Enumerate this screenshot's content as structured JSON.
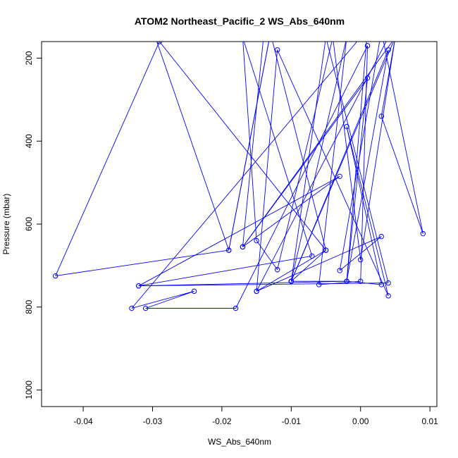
{
  "chart_data": {
    "type": "line",
    "title": "ATOM2 Northeast_Pacific_2 WS_Abs_640nm",
    "xlabel": "WS_Abs_640nm",
    "ylabel": "Pressure (mbar)",
    "xlim": [
      -0.046,
      0.011
    ],
    "ylim": [
      1040,
      160
    ],
    "y_inverted": true,
    "xticks": [
      -0.04,
      -0.03,
      -0.02,
      -0.01,
      0.0,
      0.01
    ],
    "xtick_labels": [
      "-0.04",
      "-0.03",
      "-0.02",
      "-0.01",
      "0.00",
      "0.01"
    ],
    "yticks": [
      200,
      400,
      600,
      800,
      1000
    ],
    "ytick_labels": [
      "200",
      "400",
      "600",
      "800",
      "1000"
    ],
    "grid": false,
    "color": "#0000ff",
    "series": [
      {
        "marker": "open-circle",
        "points": [
          [
            -0.03,
            130
          ],
          [
            -0.019,
            663
          ],
          [
            -0.013,
            140
          ],
          [
            -0.005,
            663
          ],
          [
            -0.029,
            160
          ],
          [
            -0.044,
            725
          ],
          [
            -0.019,
            663
          ],
          [
            -0.013,
            140
          ],
          [
            -0.014,
            150
          ],
          [
            -0.017,
            655
          ],
          [
            -0.003,
            485
          ],
          [
            -0.032,
            749
          ],
          [
            0.004,
            742
          ],
          [
            -0.005,
            150
          ],
          [
            -0.01,
            738
          ],
          [
            -0.002,
            738
          ],
          [
            0.003,
            746
          ],
          [
            -0.002,
            365
          ],
          [
            0.004,
            773
          ],
          [
            -0.012,
            180
          ],
          [
            -0.015,
            762
          ],
          [
            0.003,
            630
          ],
          [
            -0.003,
            712
          ],
          [
            0.003,
            135
          ],
          [
            0.009,
            623
          ],
          [
            0.003,
            340
          ],
          [
            0.005,
            150
          ],
          [
            0.0,
            686
          ],
          [
            -0.004,
            150
          ],
          [
            -0.012,
            710
          ],
          [
            -0.015,
            640
          ],
          [
            -0.017,
            150
          ],
          [
            -0.007,
            677
          ],
          [
            -0.032,
            749
          ],
          [
            -0.002,
            738
          ],
          [
            0.001,
            248
          ],
          [
            -0.017,
            655
          ],
          [
            0.005,
            150
          ],
          [
            -0.01,
            738
          ],
          [
            -0.002,
            150
          ],
          [
            -0.006,
            746
          ],
          [
            0.0,
            738
          ],
          [
            0.001,
            170
          ],
          [
            -0.018,
            803
          ],
          [
            -0.031,
            803
          ],
          [
            -0.024,
            762
          ],
          [
            -0.033,
            803
          ],
          [
            0.001,
            130
          ],
          [
            -0.002,
            738
          ],
          [
            0.004,
            180
          ],
          [
            -0.01,
            738
          ],
          [
            -0.005,
            663
          ],
          [
            -0.015,
            762
          ],
          [
            0.004,
            150
          ]
        ]
      }
    ]
  }
}
